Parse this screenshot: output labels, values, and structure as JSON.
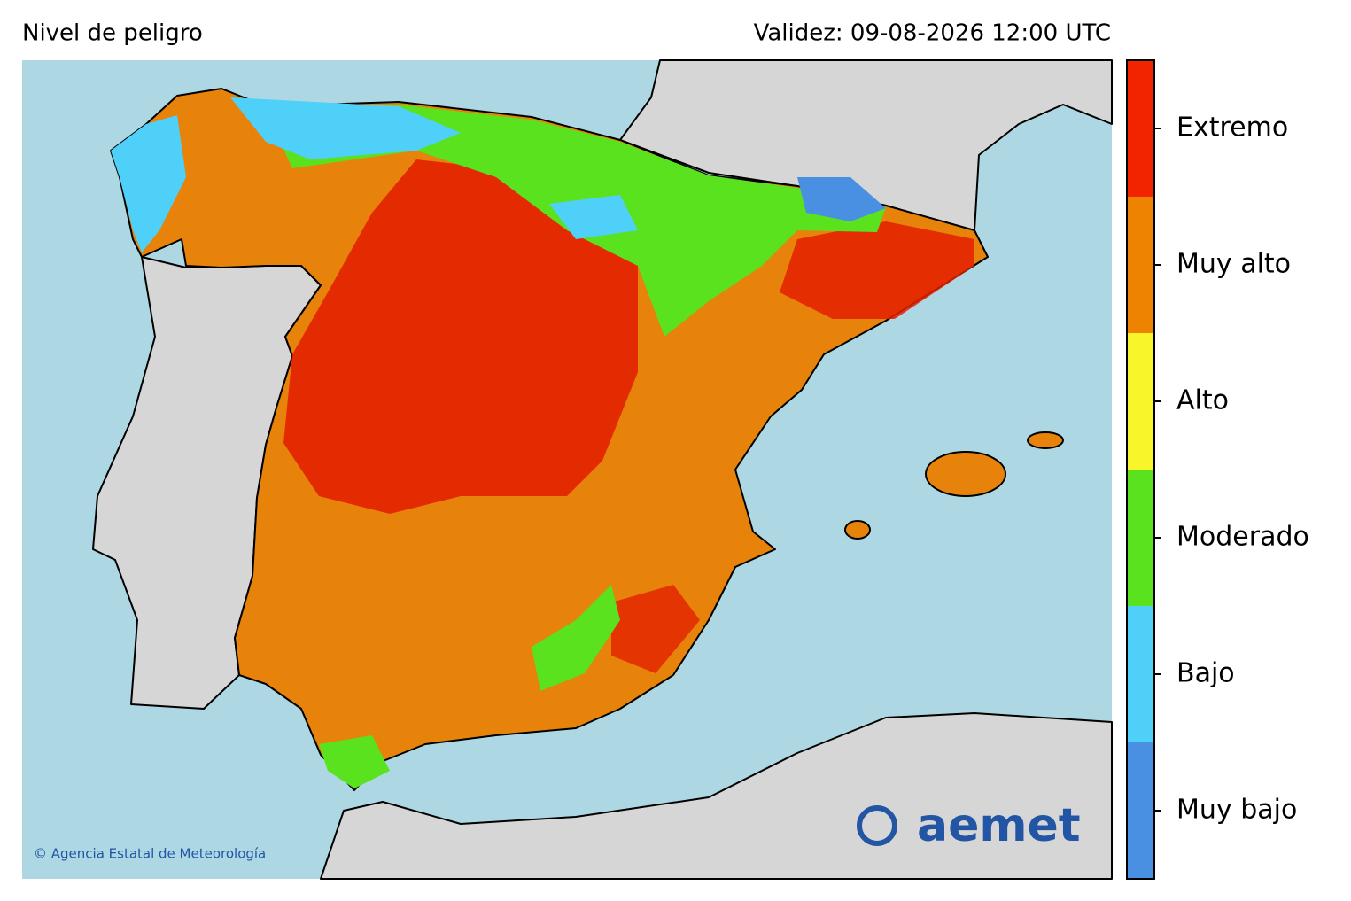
{
  "header": {
    "title": "Nivel de peligro",
    "validity": "Validez: 09-08-2026 12:00 UTC"
  },
  "legend": {
    "levels": [
      {
        "label": "Muy bajo",
        "color": "#4a90e2"
      },
      {
        "label": "Bajo",
        "color": "#4fd0f8"
      },
      {
        "label": "Moderado",
        "color": "#5ae21f"
      },
      {
        "label": "Alto",
        "color": "#f8f62a"
      },
      {
        "label": "Muy alto",
        "color": "#ed8300"
      },
      {
        "label": "Extremo",
        "color": "#f22400"
      }
    ]
  },
  "credit": "© Agencia Estatal de Meteorología",
  "logo": "aemet"
}
